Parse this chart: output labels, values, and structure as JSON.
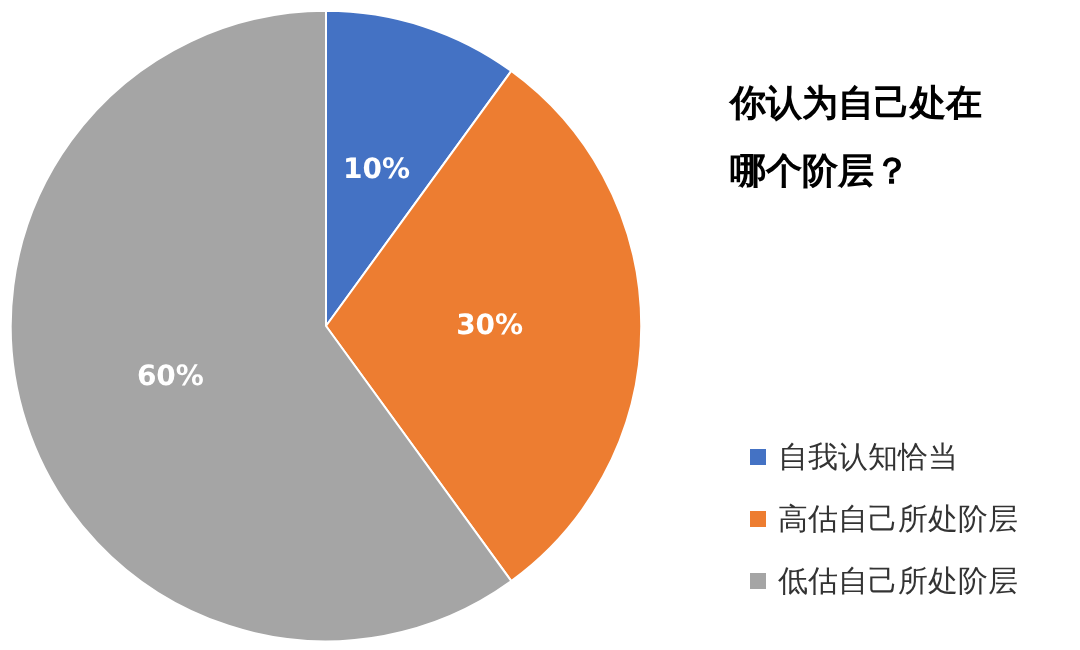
{
  "chart_data": {
    "type": "pie",
    "title": "你认为自己处在哪个阶层？",
    "categories": [
      "自我认知恰当",
      "高估自己所处阶层",
      "低估自己所处阶层"
    ],
    "values": [
      10,
      30,
      60
    ],
    "colors": [
      "#4472c4",
      "#ed7d31",
      "#a5a5a5"
    ],
    "value_labels": [
      "10%",
      "30%",
      "60%"
    ],
    "legend": "bottom right"
  }
}
